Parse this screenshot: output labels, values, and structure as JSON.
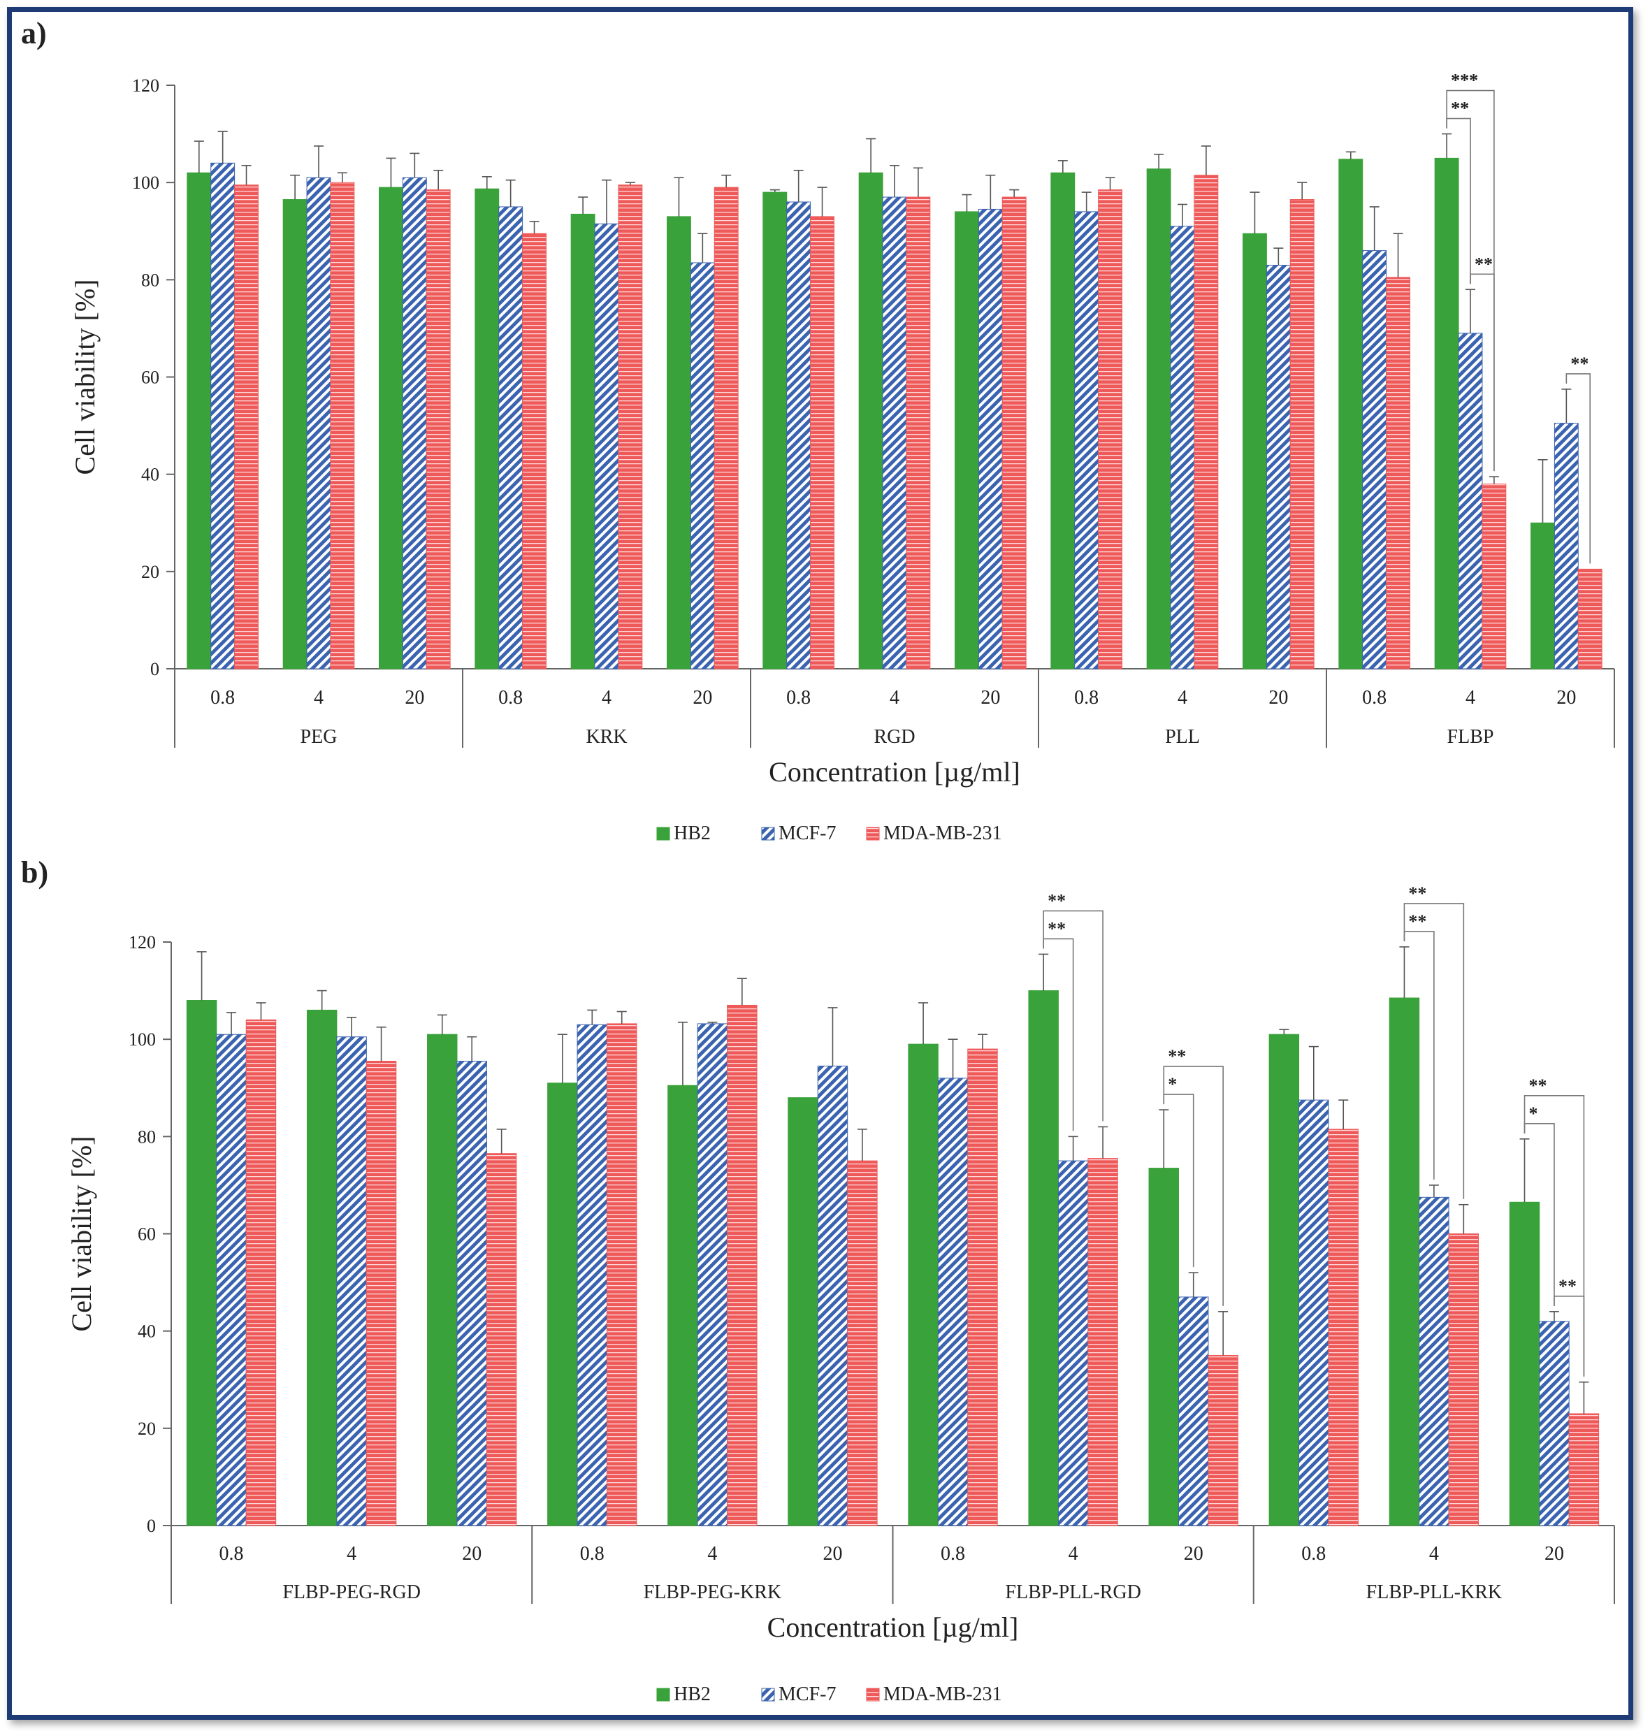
{
  "colors": {
    "HB2": "#3aa23a",
    "MCF7": "#3a63b0",
    "MDA": "#ee5a5a",
    "axis": "#666666",
    "frame": "#1f3b75"
  },
  "chart_data": [
    {
      "panel_label": "a)",
      "type": "bar",
      "ylabel": "Cell viability [%]",
      "xlabel": "Concentration [µg/ml]",
      "ylim": [
        0,
        120
      ],
      "yticks": [
        "0",
        "20",
        "40",
        "60",
        "80",
        "100",
        "120"
      ],
      "groups": [
        "PEG",
        "KRK",
        "RGD",
        "PLL",
        "FLBP"
      ],
      "concentrations": [
        "0.8",
        "4",
        "20"
      ],
      "legend": [
        "HB2",
        "MCF-7",
        "MDA-MB-231"
      ],
      "series": [
        {
          "name": "HB2",
          "values": [
            102,
            96.5,
            99,
            98.7,
            93.5,
            93,
            98,
            102,
            94,
            102,
            102.8,
            89.5,
            104.8,
            105,
            30
          ],
          "errors": [
            6.5,
            5,
            6,
            2.5,
            3.5,
            8,
            0.5,
            7,
            3.5,
            2.5,
            3,
            8.5,
            1.5,
            5,
            13
          ]
        },
        {
          "name": "MCF-7",
          "values": [
            104,
            101,
            101,
            95,
            91.5,
            83.5,
            96,
            97,
            94.5,
            94,
            91,
            83,
            86,
            69,
            50.5
          ],
          "errors": [
            6.5,
            6.5,
            5,
            5.5,
            9,
            6,
            6.5,
            6.5,
            7,
            4,
            4.5,
            3.5,
            9,
            9,
            7
          ]
        },
        {
          "name": "MDA-MB-231",
          "values": [
            99.5,
            100,
            98.5,
            89.5,
            99.5,
            99,
            93,
            97,
            97,
            98.5,
            101.5,
            96.5,
            80.5,
            38,
            20.5
          ],
          "errors": [
            4,
            2,
            4,
            2.5,
            0.5,
            2.5,
            6,
            6,
            1.5,
            2.5,
            6,
            3.5,
            9,
            1.5,
            0
          ]
        }
      ],
      "significance": [
        {
          "stars": "**",
          "between": [
            "HB2",
            "MCF-7"
          ],
          "group": "FLBP",
          "conc": "4"
        },
        {
          "stars": "***",
          "between": [
            "HB2",
            "MDA-MB-231"
          ],
          "group": "FLBP",
          "conc": "4"
        },
        {
          "stars": "**",
          "between": [
            "MCF-7",
            "MDA-MB-231"
          ],
          "group": "FLBP",
          "conc": "4"
        },
        {
          "stars": "**",
          "between": [
            "MCF-7",
            "MDA-MB-231"
          ],
          "group": "FLBP",
          "conc": "20"
        }
      ]
    },
    {
      "panel_label": "b)",
      "type": "bar",
      "ylabel": "Cell viability [%]",
      "xlabel": "Concentration [µg/ml]",
      "ylim": [
        0,
        120
      ],
      "yticks": [
        "0",
        "20",
        "40",
        "60",
        "80",
        "100",
        "120"
      ],
      "groups": [
        "FLBP-PEG-RGD",
        "FLBP-PEG-KRK",
        "FLBP-PLL-RGD",
        "FLBP-PLL-KRK"
      ],
      "concentrations": [
        "0.8",
        "4",
        "20"
      ],
      "legend": [
        "HB2",
        "MCF-7",
        "MDA-MB-231"
      ],
      "series": [
        {
          "name": "HB2",
          "values": [
            108,
            106,
            101,
            91,
            90.5,
            88,
            99,
            110,
            73.5,
            101,
            108.5,
            66.5
          ],
          "errors": [
            10,
            4,
            4,
            10,
            13,
            0,
            8.5,
            7.5,
            12,
            1,
            10.5,
            13
          ]
        },
        {
          "name": "MCF-7",
          "values": [
            101,
            100.5,
            95.5,
            103,
            103.2,
            94.5,
            92,
            75,
            47,
            87.5,
            67.5,
            42
          ],
          "errors": [
            4.5,
            4,
            5,
            3,
            0.3,
            12,
            8,
            5,
            5,
            11,
            2.5,
            2
          ]
        },
        {
          "name": "MDA-MB-231",
          "values": [
            104,
            95.5,
            76.5,
            103.2,
            107,
            75,
            98,
            75.5,
            35,
            81.5,
            60,
            23
          ],
          "errors": [
            3.5,
            7,
            5,
            2.5,
            5.5,
            6.5,
            3,
            6.5,
            9,
            6,
            6,
            6.5
          ]
        }
      ],
      "significance": [
        {
          "stars": "**",
          "between": [
            "HB2",
            "MCF-7"
          ],
          "group": "FLBP-PLL-RGD",
          "conc": "4"
        },
        {
          "stars": "**",
          "between": [
            "HB2",
            "MDA-MB-231"
          ],
          "group": "FLBP-PLL-RGD",
          "conc": "4"
        },
        {
          "stars": "*",
          "between": [
            "HB2",
            "MCF-7"
          ],
          "group": "FLBP-PLL-RGD",
          "conc": "20"
        },
        {
          "stars": "**",
          "between": [
            "HB2",
            "MDA-MB-231"
          ],
          "group": "FLBP-PLL-RGD",
          "conc": "20"
        },
        {
          "stars": "**",
          "between": [
            "HB2",
            "MCF-7"
          ],
          "group": "FLBP-PLL-KRK",
          "conc": "4"
        },
        {
          "stars": "**",
          "between": [
            "HB2",
            "MDA-MB-231"
          ],
          "group": "FLBP-PLL-KRK",
          "conc": "4"
        },
        {
          "stars": "*",
          "between": [
            "HB2",
            "MCF-7"
          ],
          "group": "FLBP-PLL-KRK",
          "conc": "20"
        },
        {
          "stars": "**",
          "between": [
            "HB2",
            "MDA-MB-231"
          ],
          "group": "FLBP-PLL-KRK",
          "conc": "20"
        },
        {
          "stars": "**",
          "between": [
            "MCF-7",
            "MDA-MB-231"
          ],
          "group": "FLBP-PLL-KRK",
          "conc": "20"
        }
      ]
    }
  ]
}
